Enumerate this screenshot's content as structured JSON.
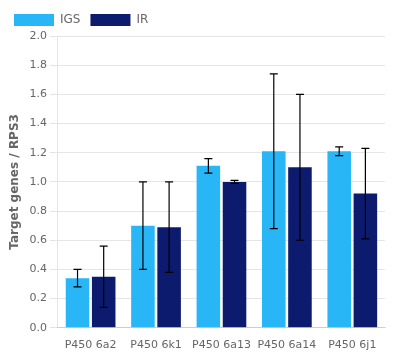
{
  "chart_data": {
    "type": "bar",
    "categories": [
      "P450 6a2",
      "P450 6k1",
      "P450 6a13",
      "P450 6a14",
      "P450 6j1"
    ],
    "series": [
      {
        "name": "IGS",
        "color": "#29B6F6",
        "values": [
          0.34,
          0.7,
          1.11,
          1.21,
          1.21
        ],
        "errors": [
          0.06,
          0.3,
          0.05,
          0.53,
          0.03
        ]
      },
      {
        "name": "IR",
        "color": "#0D1B6E",
        "values": [
          0.35,
          0.69,
          1.0,
          1.1,
          0.92
        ],
        "errors": [
          0.21,
          0.31,
          0.01,
          0.5,
          0.31
        ]
      }
    ],
    "ylabel": "Target genes / RPS3",
    "ylim": [
      0.0,
      2.0
    ],
    "yticks": [
      {
        "value": 0.0,
        "label": "0.0"
      },
      0.2,
      0.4,
      0.6,
      0.8,
      {
        "value": 1.0,
        "label": "1.0"
      },
      1.2,
      1.4,
      1.6,
      1.8,
      {
        "value": 2.0,
        "label": "2.0"
      }
    ],
    "grid": true,
    "legend": "upper left"
  }
}
